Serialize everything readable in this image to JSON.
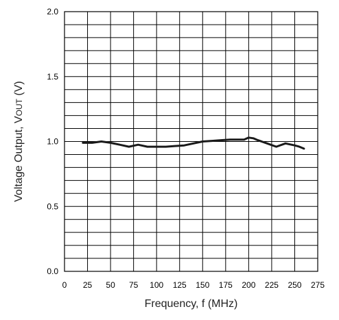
{
  "chart_data": {
    "type": "line",
    "title": "",
    "xlabel": "Frequency, f (MHz)",
    "ylabel": "Voltage Output, VOUT (V)",
    "ylabel_parts": {
      "main": "Voltage Output, V",
      "subscript": "OUT",
      "unit": " (V)"
    },
    "xlim": [
      0,
      275
    ],
    "ylim": [
      0.0,
      2.0
    ],
    "x_ticks": [
      0,
      25,
      50,
      75,
      100,
      125,
      150,
      175,
      200,
      225,
      250,
      275
    ],
    "x_tick_labels": [
      "0",
      "25",
      "50",
      "75",
      "100",
      "125",
      "150",
      "175",
      "200",
      "225",
      "250",
      "275"
    ],
    "y_ticks": [
      0.0,
      0.5,
      1.0,
      1.5,
      2.0
    ],
    "y_tick_labels": [
      "0.0",
      "0.5",
      "1.0",
      "1.5",
      "2.0"
    ],
    "grid": true,
    "series": [
      {
        "name": "",
        "x": [
          20,
          30,
          40,
          50,
          60,
          70,
          80,
          90,
          100,
          110,
          120,
          130,
          140,
          150,
          160,
          170,
          180,
          190,
          195,
          200,
          205,
          210,
          220,
          230,
          240,
          250,
          255,
          260
        ],
        "y": [
          0.99,
          0.99,
          1.0,
          0.99,
          0.975,
          0.96,
          0.975,
          0.96,
          0.96,
          0.96,
          0.965,
          0.97,
          0.985,
          1.0,
          1.005,
          1.01,
          1.015,
          1.015,
          1.015,
          1.03,
          1.025,
          1.01,
          0.985,
          0.96,
          0.985,
          0.97,
          0.96,
          0.945
        ]
      }
    ]
  }
}
